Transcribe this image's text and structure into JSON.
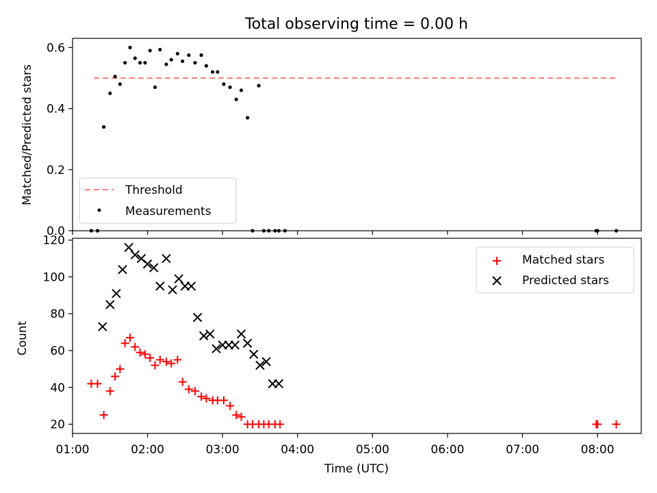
{
  "chart_data": [
    {
      "type": "scatter",
      "title": "Total observing time = 0.00 h",
      "ylabel": "Matched/Predicted stars",
      "xlabel": "",
      "xlim": [
        "01:00",
        "08:35"
      ],
      "ylim": [
        0,
        0.63
      ],
      "xticks": [
        "01:00",
        "02:00",
        "03:00",
        "04:00",
        "05:00",
        "06:00",
        "07:00",
        "08:00"
      ],
      "yticks": [
        "0.0",
        "0.2",
        "0.4",
        "0.6"
      ],
      "grid": false,
      "legend": "lower-left",
      "threshold": {
        "name": "Threshold",
        "value": 0.5,
        "x_range": [
          "01:17",
          "08:17"
        ],
        "color": "#ff7f7f",
        "style": "dashed"
      },
      "series": [
        {
          "name": "Measurements",
          "color": "#000000",
          "x": [
            "01:15",
            "01:20",
            "01:25",
            "01:30",
            "01:34",
            "01:38",
            "01:42",
            "01:46",
            "01:50",
            "01:54",
            "01:58",
            "02:02",
            "02:06",
            "02:10",
            "02:15",
            "02:19",
            "02:24",
            "02:28",
            "02:33",
            "02:38",
            "02:43",
            "02:47",
            "02:52",
            "02:56",
            "03:01",
            "03:06",
            "03:11",
            "03:15",
            "03:20",
            "03:24",
            "03:29",
            "03:33",
            "03:37",
            "03:42",
            "03:45",
            "03:50",
            "07:59",
            "08:00",
            "08:15"
          ],
          "y": [
            0.0,
            0.0,
            0.34,
            0.45,
            0.505,
            0.48,
            0.55,
            0.6,
            0.565,
            0.55,
            0.55,
            0.59,
            0.47,
            0.593,
            0.545,
            0.56,
            0.58,
            0.555,
            0.575,
            0.55,
            0.575,
            0.54,
            0.52,
            0.52,
            0.48,
            0.47,
            0.43,
            0.46,
            0.37,
            0.0,
            0.475,
            0.0,
            0.0,
            0.0,
            0.0,
            0.0,
            0.0,
            0.0,
            0.0
          ]
        }
      ]
    },
    {
      "type": "scatter",
      "title": "",
      "xlabel": "Time (UTC)",
      "ylabel": "Count",
      "xlim": [
        "01:00",
        "08:35"
      ],
      "ylim": [
        15,
        121
      ],
      "xticks": [
        "01:00",
        "02:00",
        "03:00",
        "04:00",
        "05:00",
        "06:00",
        "07:00",
        "08:00"
      ],
      "yticks": [
        "20",
        "40",
        "60",
        "80",
        "100",
        "120"
      ],
      "grid": false,
      "legend": "upper-right",
      "series": [
        {
          "name": "Matched stars",
          "marker": "plus",
          "color": "#ff0000",
          "x": [
            "01:15",
            "01:20",
            "01:25",
            "01:30",
            "01:34",
            "01:38",
            "01:42",
            "01:46",
            "01:50",
            "01:54",
            "01:58",
            "02:02",
            "02:06",
            "02:10",
            "02:15",
            "02:19",
            "02:24",
            "02:28",
            "02:33",
            "02:38",
            "02:43",
            "02:47",
            "02:52",
            "02:56",
            "03:01",
            "03:06",
            "03:11",
            "03:15",
            "03:20",
            "03:24",
            "03:29",
            "03:33",
            "03:37",
            "03:42",
            "03:46",
            "07:59",
            "08:00",
            "08:15"
          ],
          "y": [
            42,
            42,
            25,
            38,
            46,
            50,
            64,
            67,
            62,
            59,
            58,
            56,
            52,
            55,
            54,
            53,
            55,
            43,
            39,
            38,
            35,
            34,
            33,
            33,
            33,
            30,
            25,
            24,
            20,
            20,
            20,
            20,
            20,
            20,
            20,
            20,
            20,
            20
          ]
        },
        {
          "name": "Predicted stars",
          "marker": "x",
          "color": "#000000",
          "x": [
            "01:24",
            "01:30",
            "01:35",
            "01:40",
            "01:45",
            "01:50",
            "01:55",
            "02:00",
            "02:05",
            "02:10",
            "02:15",
            "02:20",
            "02:25",
            "02:30",
            "02:35",
            "02:40",
            "02:45",
            "02:50",
            "02:55",
            "03:00",
            "03:05",
            "03:10",
            "03:15",
            "03:20",
            "03:25",
            "03:30",
            "03:35",
            "03:40",
            "03:45"
          ],
          "y": [
            73,
            85,
            91,
            104,
            116,
            112,
            110,
            107,
            105,
            95,
            110,
            93,
            99,
            95,
            95,
            78,
            68,
            69,
            61,
            63,
            63,
            63,
            69,
            64,
            58,
            52,
            54,
            42,
            42
          ]
        }
      ]
    }
  ]
}
